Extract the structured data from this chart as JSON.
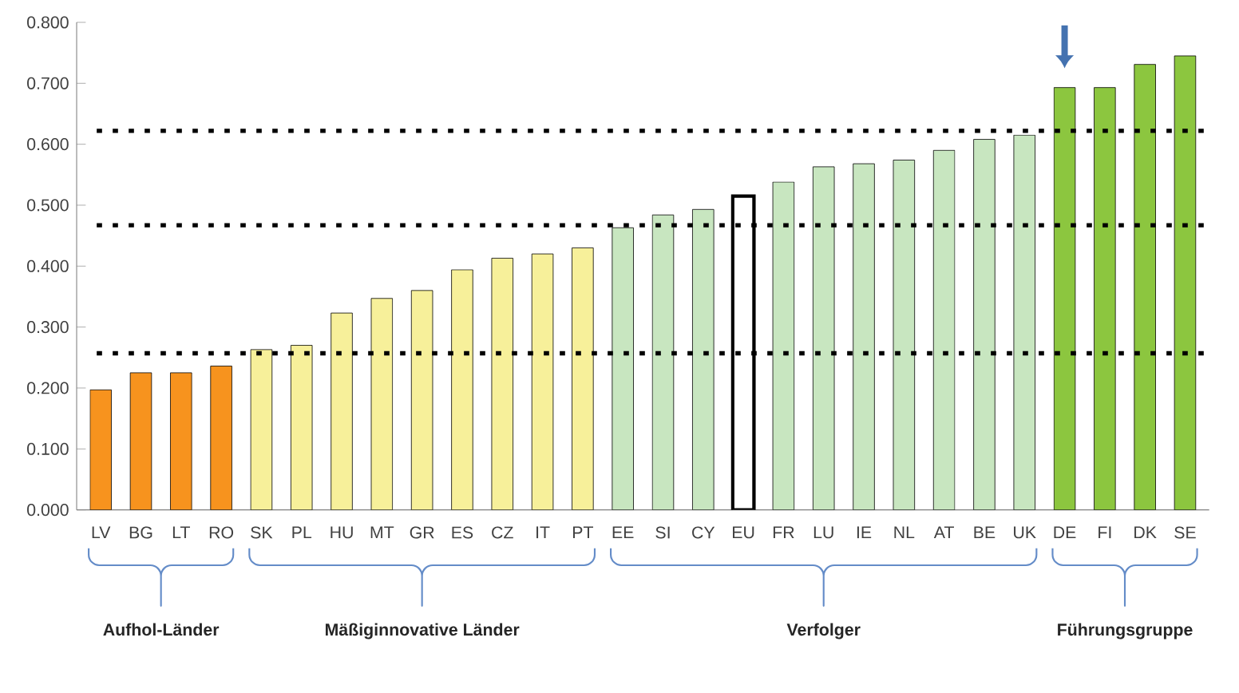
{
  "chart_data": {
    "type": "bar",
    "categories": [
      "LV",
      "BG",
      "LT",
      "RO",
      "SK",
      "PL",
      "HU",
      "MT",
      "GR",
      "ES",
      "CZ",
      "IT",
      "PT",
      "EE",
      "SI",
      "CY",
      "EU",
      "FR",
      "LU",
      "IE",
      "NL",
      "AT",
      "BE",
      "UK",
      "DE",
      "FI",
      "DK",
      "SE"
    ],
    "values": [
      0.197,
      0.225,
      0.225,
      0.236,
      0.263,
      0.27,
      0.323,
      0.347,
      0.36,
      0.394,
      0.413,
      0.42,
      0.43,
      0.463,
      0.484,
      0.493,
      0.515,
      0.538,
      0.563,
      0.568,
      0.574,
      0.59,
      0.608,
      0.615,
      0.693,
      0.693,
      0.731,
      0.745
    ],
    "colors": [
      "#f7931e",
      "#f7931e",
      "#f7931e",
      "#f7931e",
      "#f7f09a",
      "#f7f09a",
      "#f7f09a",
      "#f7f09a",
      "#f7f09a",
      "#f7f09a",
      "#f7f09a",
      "#f7f09a",
      "#f7f09a",
      "#c8e6c0",
      "#c8e6c0",
      "#c8e6c0",
      "#ffffff",
      "#c8e6c0",
      "#c8e6c0",
      "#c8e6c0",
      "#c8e6c0",
      "#c8e6c0",
      "#c8e6c0",
      "#c8e6c0",
      "#8cc63f",
      "#8cc63f",
      "#8cc63f",
      "#8cc63f"
    ],
    "ylim": [
      0,
      0.8
    ],
    "yticks": [
      {
        "value": 0,
        "label": "0.000"
      },
      {
        "value": 0.1,
        "label": "0.100"
      },
      {
        "value": 0.2,
        "label": "0.200"
      },
      {
        "value": 0.3,
        "label": "0.300"
      },
      {
        "value": 0.4,
        "label": "0.400"
      },
      {
        "value": 0.5,
        "label": "0.500"
      },
      {
        "value": 0.6,
        "label": "0.600"
      },
      {
        "value": 0.7,
        "label": "0.700"
      },
      {
        "value": 0.8,
        "label": "0.800"
      }
    ],
    "ref_lines": [
      {
        "axis": "y",
        "value": 0.257,
        "color": "#000000",
        "line_style": "dotted"
      },
      {
        "axis": "y",
        "value": 0.467,
        "color": "#000000",
        "line_style": "dotted"
      },
      {
        "axis": "y",
        "value": 0.622,
        "color": "#000000",
        "line_style": "dotted"
      }
    ],
    "annotations": [
      "Aufhol-Länder",
      "Mäßiginnovative Länder",
      "Verfolger",
      "Führungsgruppe"
    ],
    "grid": false
  }
}
